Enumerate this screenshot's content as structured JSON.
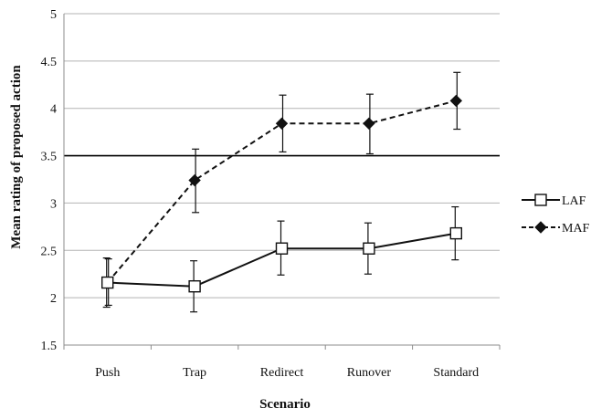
{
  "chart_data": {
    "type": "line",
    "title": "",
    "xlabel": "Scenario",
    "ylabel": "Mean rating of proposed action",
    "categories": [
      "Push",
      "Trap",
      "Redirect",
      "Runover",
      "Standard"
    ],
    "ylim": [
      1.5,
      5
    ],
    "yticks": [
      "1.5",
      "2",
      "2.5",
      "3",
      "3.5",
      "4",
      "4.5",
      "5"
    ],
    "grid": true,
    "reference_line": 3.5,
    "legend_position": "right",
    "series": [
      {
        "name": "LAF",
        "line_style": "solid",
        "marker": "open-square",
        "color": "#111111",
        "values": [
          2.16,
          2.12,
          2.52,
          2.52,
          2.68
        ],
        "error_low": [
          1.9,
          1.85,
          2.24,
          2.25,
          2.4
        ],
        "error_high": [
          2.42,
          2.39,
          2.81,
          2.79,
          2.96
        ]
      },
      {
        "name": "MAF",
        "line_style": "dashed",
        "marker": "filled-diamond",
        "color": "#111111",
        "values": [
          2.16,
          3.24,
          3.84,
          3.84,
          4.08
        ],
        "error_low": [
          1.92,
          2.9,
          3.54,
          3.52,
          3.78
        ],
        "error_high": [
          2.41,
          3.57,
          4.14,
          4.15,
          4.38
        ]
      }
    ]
  }
}
